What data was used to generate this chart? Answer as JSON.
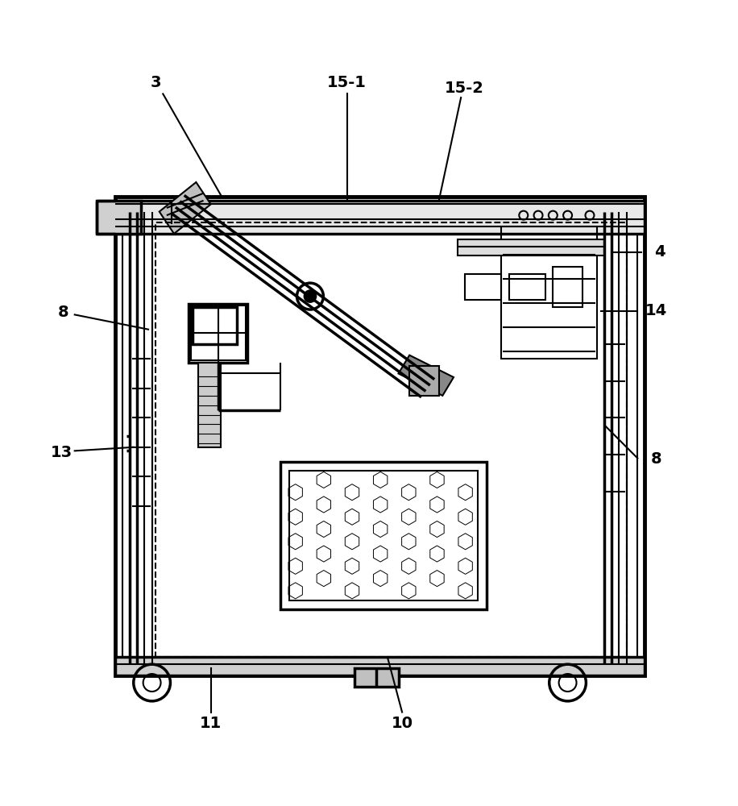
{
  "bg_color": "#ffffff",
  "line_color": "#000000",
  "figure_width": 9.16,
  "figure_height": 10.0,
  "font_size": 14,
  "lw": 1.5
}
